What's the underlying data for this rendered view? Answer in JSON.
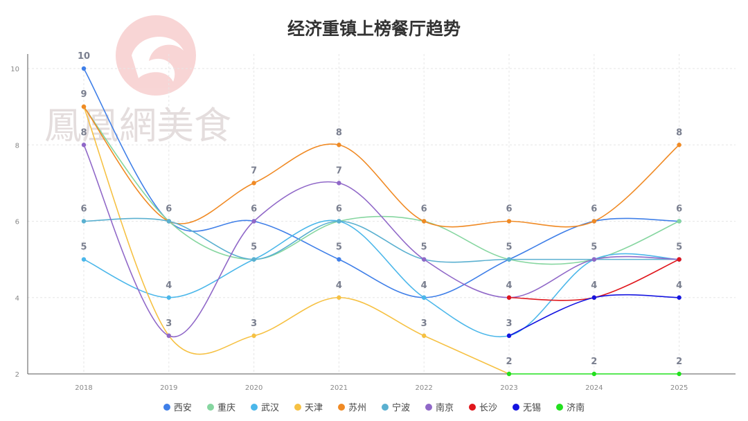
{
  "chart_data": {
    "type": "line",
    "title": "经济重镇上榜餐厅趋势",
    "x": [
      "2018",
      "2019",
      "2020",
      "2021",
      "2022",
      "2023",
      "2024",
      "2025"
    ],
    "ylim": [
      2,
      10
    ],
    "yticks": [
      2,
      4,
      6,
      8,
      10
    ],
    "grid": true,
    "legend_position": "bottom",
    "series": [
      {
        "name": "西安",
        "color": "#3f7fe8",
        "values": [
          10,
          6,
          6,
          5,
          4,
          5,
          6,
          6
        ]
      },
      {
        "name": "重庆",
        "color": "#86d6a0",
        "values": [
          9,
          6,
          5,
          6,
          6,
          5,
          5,
          6
        ]
      },
      {
        "name": "武汉",
        "color": "#4bb7ea",
        "values": [
          5,
          4,
          5,
          6,
          4,
          3,
          5,
          5
        ]
      },
      {
        "name": "天津",
        "color": "#f6c143",
        "values": [
          9,
          3,
          3,
          4,
          3,
          2,
          null,
          null
        ]
      },
      {
        "name": "苏州",
        "color": "#f08a24",
        "values": [
          9,
          6,
          7,
          8,
          6,
          6,
          6,
          8
        ]
      },
      {
        "name": "宁波",
        "color": "#5ab0d0",
        "values": [
          6,
          6,
          5,
          6,
          5,
          5,
          5,
          5
        ]
      },
      {
        "name": "南京",
        "color": "#9068c8",
        "values": [
          8,
          3,
          6,
          7,
          5,
          4,
          5,
          5
        ]
      },
      {
        "name": "长沙",
        "color": "#e0161c",
        "values": [
          null,
          null,
          null,
          null,
          null,
          4,
          4,
          5
        ]
      },
      {
        "name": "无锡",
        "color": "#1414e0",
        "values": [
          null,
          null,
          null,
          null,
          null,
          3,
          4,
          4
        ]
      },
      {
        "name": "济南",
        "color": "#22e01e",
        "values": [
          null,
          null,
          null,
          null,
          null,
          2,
          2,
          2
        ]
      }
    ],
    "point_labels": [
      {
        "x": "2018",
        "labels": [
          "10",
          "9",
          "8",
          "6",
          "5"
        ]
      },
      {
        "x": "2019",
        "labels": [
          "6",
          "4",
          "3"
        ]
      },
      {
        "x": "2020",
        "labels": [
          "7",
          "6",
          "5",
          "3"
        ]
      },
      {
        "x": "2021",
        "labels": [
          "8",
          "7",
          "6",
          "5",
          "4"
        ]
      },
      {
        "x": "2022",
        "labels": [
          "6",
          "5",
          "4",
          "3"
        ]
      },
      {
        "x": "2023",
        "labels": [
          "6",
          "5",
          "4",
          "3",
          "2"
        ]
      },
      {
        "x": "2024",
        "labels": [
          "6",
          "5",
          "4",
          "2"
        ]
      },
      {
        "x": "2025",
        "labels": [
          "8",
          "6",
          "5",
          "4",
          "2"
        ]
      }
    ]
  },
  "watermark": {
    "text": "鳳凰網美食",
    "color": "#e9a3a3"
  }
}
